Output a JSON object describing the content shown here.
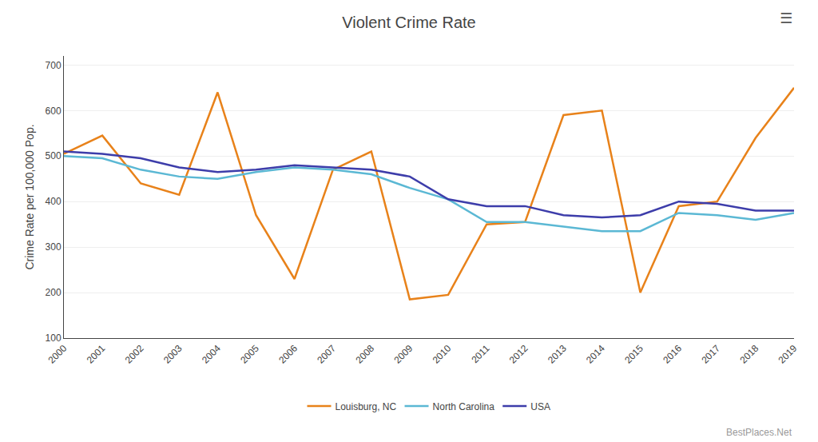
{
  "chart_data": {
    "type": "line",
    "title": "Violent Crime Rate",
    "y_label": "Crime Rate per 100,000 Pop.",
    "x": [
      2000,
      2001,
      2002,
      2003,
      2004,
      2005,
      2006,
      2007,
      2008,
      2009,
      2010,
      2011,
      2012,
      2013,
      2014,
      2015,
      2016,
      2017,
      2018,
      2019
    ],
    "series": [
      {
        "name": "Louisburg, NC",
        "color": "#E8821A",
        "values": [
          505,
          545,
          440,
          415,
          640,
          370,
          230,
          470,
          510,
          185,
          195,
          350,
          355,
          590,
          600,
          200,
          390,
          400,
          540,
          650
        ]
      },
      {
        "name": "North Carolina",
        "color": "#5BB8D4",
        "values": [
          500,
          495,
          470,
          455,
          450,
          465,
          475,
          470,
          460,
          430,
          405,
          355,
          355,
          345,
          335,
          335,
          375,
          370,
          360,
          375
        ]
      },
      {
        "name": "USA",
        "color": "#3D3DAA",
        "values": [
          510,
          505,
          495,
          475,
          465,
          470,
          480,
          475,
          470,
          455,
          405,
          390,
          390,
          370,
          365,
          370,
          400,
          395,
          380,
          380
        ]
      }
    ],
    "xlim": [
      2000,
      2019
    ],
    "xticks": [
      2000,
      2001,
      2002,
      2003,
      2004,
      2005,
      2006,
      2007,
      2008,
      2009,
      2010,
      2011,
      2012,
      2013,
      2014,
      2015,
      2016,
      2017,
      2018,
      2019
    ],
    "ylim": [
      100,
      720
    ],
    "yticks": [
      100,
      200,
      300,
      400,
      500,
      600,
      700
    ],
    "grid": "y",
    "legend": "bottom",
    "annotations": [
      "BestPlaces.Net",
      "☰"
    ]
  }
}
